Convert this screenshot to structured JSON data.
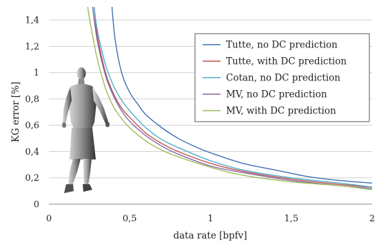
{
  "chart_data": {
    "type": "line",
    "title": "",
    "xlabel": "data rate [bpfv]",
    "ylabel": "KG error [%]",
    "xlim": [
      0,
      2
    ],
    "ylim": [
      0,
      1.5
    ],
    "xticks": [
      "0",
      "0,5",
      "1",
      "1,5",
      "2"
    ],
    "yticks": [
      "0",
      "0,2",
      "0,4",
      "0,6",
      "0,8",
      "1",
      "1,2",
      "1,4"
    ],
    "grid": "horizontal",
    "legend_position": "top-right",
    "series": [
      {
        "name": "Tutte, no DC prediction",
        "color": "#3c6fb0",
        "x": [
          0.39,
          0.41,
          0.45,
          0.5,
          0.55,
          0.6,
          0.7,
          0.8,
          0.9,
          1.0,
          1.2,
          1.4,
          1.6,
          1.8,
          2.0
        ],
        "y": [
          1.5,
          1.25,
          1.0,
          0.85,
          0.76,
          0.68,
          0.58,
          0.5,
          0.44,
          0.39,
          0.31,
          0.26,
          0.21,
          0.18,
          0.16
        ]
      },
      {
        "name": "Tutte, with DC prediction",
        "color": "#c0504d",
        "x": [
          0.28,
          0.3,
          0.35,
          0.4,
          0.45,
          0.5,
          0.6,
          0.7,
          0.8,
          1.0,
          1.2,
          1.5,
          1.8,
          2.0
        ],
        "y": [
          1.5,
          1.28,
          1.0,
          0.84,
          0.73,
          0.66,
          0.54,
          0.46,
          0.4,
          0.31,
          0.25,
          0.19,
          0.15,
          0.13
        ]
      },
      {
        "name": "Cotan, no DC prediction",
        "color": "#4bacc6",
        "x": [
          0.28,
          0.3,
          0.35,
          0.4,
          0.45,
          0.5,
          0.6,
          0.7,
          0.8,
          1.0,
          1.2,
          1.5,
          1.8,
          2.0
        ],
        "y": [
          1.5,
          1.32,
          1.06,
          0.9,
          0.79,
          0.71,
          0.58,
          0.49,
          0.43,
          0.33,
          0.26,
          0.2,
          0.16,
          0.13
        ]
      },
      {
        "name": "MV, no DC prediction",
        "color": "#8064a2",
        "x": [
          0.27,
          0.3,
          0.35,
          0.4,
          0.45,
          0.5,
          0.6,
          0.7,
          0.8,
          1.0,
          1.2,
          1.5,
          1.8,
          2.0
        ],
        "y": [
          1.5,
          1.24,
          0.98,
          0.82,
          0.71,
          0.63,
          0.52,
          0.44,
          0.38,
          0.29,
          0.24,
          0.18,
          0.14,
          0.12
        ]
      },
      {
        "name": "MV, with DC prediction",
        "color": "#9bbb59",
        "x": [
          0.24,
          0.25,
          0.28,
          0.3,
          0.35,
          0.4,
          0.45,
          0.5,
          0.6,
          0.7,
          0.8,
          1.0,
          1.2,
          1.5,
          1.8,
          2.0
        ],
        "y": [
          1.5,
          1.42,
          1.22,
          1.1,
          0.88,
          0.74,
          0.65,
          0.58,
          0.48,
          0.41,
          0.36,
          0.28,
          0.22,
          0.17,
          0.14,
          0.11
        ]
      }
    ]
  }
}
